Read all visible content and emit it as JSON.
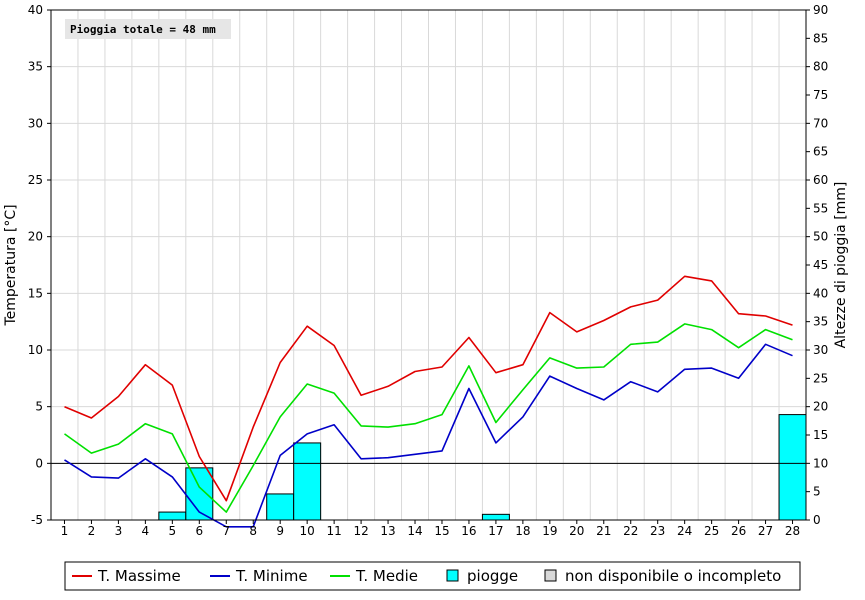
{
  "chart_data": {
    "type": "bar+line",
    "annotation": "Pioggia totale = 48 mm",
    "xlabel": "",
    "ylabel_left": "Temperatura [°C]",
    "ylabel_right": "Altezze di pioggia [mm]",
    "ylim_left": [
      -5,
      40
    ],
    "ylim_right": [
      0,
      90
    ],
    "yticks_left": [
      -5,
      0,
      5,
      10,
      15,
      20,
      25,
      30,
      35,
      40
    ],
    "yticks_right": [
      0,
      5,
      10,
      15,
      20,
      25,
      30,
      35,
      40,
      45,
      50,
      55,
      60,
      65,
      70,
      75,
      80,
      85,
      90
    ],
    "grid": "horizontal and vertical",
    "legend_position": "bottom",
    "categories": [
      "1",
      "2",
      "3",
      "4",
      "5",
      "6",
      "7",
      "8",
      "9",
      "10",
      "11",
      "12",
      "13",
      "14",
      "15",
      "16",
      "17",
      "18",
      "19",
      "20",
      "21",
      "22",
      "23",
      "24",
      "25",
      "26",
      "27",
      "28"
    ],
    "series": [
      {
        "name": "T. Massime",
        "color": "#e00000",
        "axis": "left",
        "values": [
          5.0,
          4.0,
          5.9,
          8.7,
          6.9,
          0.6,
          -3.3,
          3.2,
          8.9,
          12.1,
          10.4,
          6.0,
          6.8,
          8.1,
          8.5,
          11.1,
          8.0,
          8.7,
          13.3,
          11.6,
          12.6,
          13.8,
          14.4,
          16.5,
          16.1,
          13.2,
          13.0,
          12.2
        ]
      },
      {
        "name": "T. Minime",
        "color": "#0000c8",
        "axis": "left",
        "values": [
          0.3,
          -1.2,
          -1.3,
          0.4,
          -1.2,
          -4.3,
          -5.6,
          -5.6,
          0.7,
          2.6,
          3.4,
          0.4,
          0.5,
          0.8,
          1.1,
          6.6,
          1.8,
          4.1,
          7.7,
          6.6,
          5.6,
          7.2,
          6.3,
          8.3,
          8.4,
          7.5,
          10.5,
          9.5
        ]
      },
      {
        "name": "T. Medie",
        "color": "#00e000",
        "axis": "left",
        "values": [
          2.6,
          0.9,
          1.7,
          3.5,
          2.6,
          -2.1,
          -4.3,
          -0.2,
          4.1,
          7.0,
          6.2,
          3.3,
          3.2,
          3.5,
          4.3,
          8.6,
          3.6,
          6.5,
          9.3,
          8.4,
          8.5,
          10.5,
          10.7,
          12.3,
          11.8,
          10.2,
          11.8,
          10.9
        ]
      },
      {
        "name": "piogge",
        "type": "bar",
        "color": "#00ffff",
        "axis": "right",
        "values": [
          0,
          0,
          0,
          0,
          1.4,
          9.2,
          0,
          0,
          4.6,
          13.6,
          0,
          0,
          0,
          0,
          0,
          0,
          1.0,
          0,
          0,
          0,
          0,
          0,
          0,
          0,
          0,
          0,
          0,
          18.6
        ]
      },
      {
        "name": "non disponibile o incompleto",
        "type": "marker",
        "color": "#d8d8d8"
      }
    ]
  }
}
